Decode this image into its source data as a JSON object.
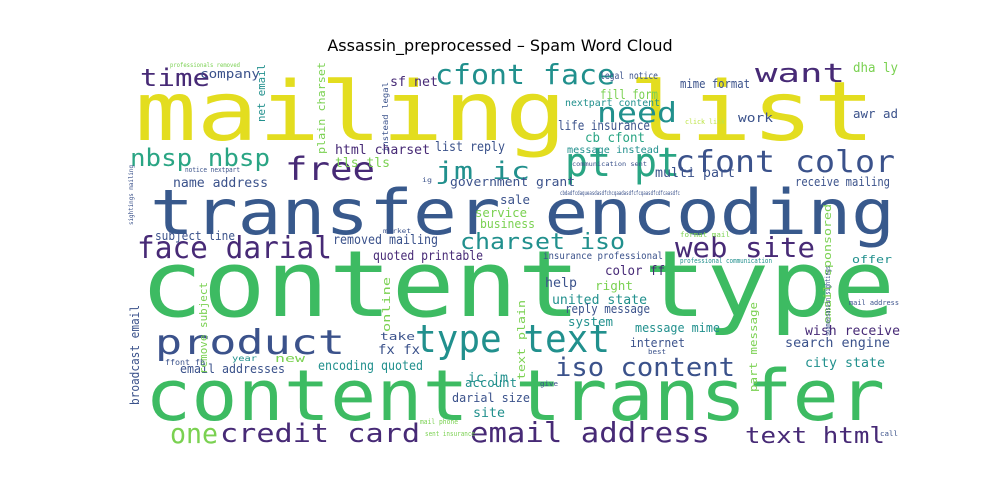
{
  "title": "Assassin_preprocessed – Spam Word Cloud",
  "palette": {
    "yellow": "#e3dd1f",
    "green": "#3dbb62",
    "navy": "#38598c",
    "purple": "#472a76",
    "teal": "#21908d",
    "lime": "#7ad151",
    "aqua": "#2aa584",
    "dark": "#3b528b",
    "pale": "#bde345"
  },
  "words": [
    {
      "text": "mailing list",
      "color": "yellow"
    },
    {
      "text": "transfer encoding",
      "color": "navy"
    },
    {
      "text": "content type",
      "color": "green"
    },
    {
      "text": "content transfer",
      "color": "green"
    },
    {
      "text": "type text",
      "color": "teal"
    },
    {
      "text": "product",
      "color": "dark"
    },
    {
      "text": "face darial",
      "color": "purple"
    },
    {
      "text": "free",
      "color": "purple"
    },
    {
      "text": "pt pt",
      "color": "aqua"
    },
    {
      "text": "cfont color",
      "color": "dark"
    },
    {
      "text": "cfont face",
      "color": "teal"
    },
    {
      "text": "web site",
      "color": "purple"
    },
    {
      "text": "credit card",
      "color": "purple"
    },
    {
      "text": "email address",
      "color": "purple"
    },
    {
      "text": "iso content",
      "color": "dark"
    },
    {
      "text": "charset iso",
      "color": "teal"
    },
    {
      "text": "need",
      "color": "teal"
    },
    {
      "text": "want",
      "color": "purple"
    },
    {
      "text": "time",
      "color": "purple"
    },
    {
      "text": "nbsp nbsp",
      "color": "aqua"
    },
    {
      "text": "text html",
      "color": "purple"
    },
    {
      "text": "jm ic",
      "color": "teal"
    },
    {
      "text": "one",
      "color": "lime"
    },
    {
      "text": "company",
      "color": "dark"
    },
    {
      "text": "net email",
      "color": "teal"
    },
    {
      "text": "sf net",
      "color": "purple"
    },
    {
      "text": "plain charset",
      "color": "lime"
    },
    {
      "text": "instead legal",
      "color": "dark"
    },
    {
      "text": "legal notice",
      "color": "dark"
    },
    {
      "text": "mime format",
      "color": "dark"
    },
    {
      "text": "fill form",
      "color": "lime"
    },
    {
      "text": "nextpart content",
      "color": "teal"
    },
    {
      "text": "life insurance",
      "color": "dark"
    },
    {
      "text": "cb cfont",
      "color": "aqua"
    },
    {
      "text": "message instead",
      "color": "teal"
    },
    {
      "text": "html charset",
      "color": "purple"
    },
    {
      "text": "list reply",
      "color": "dark"
    },
    {
      "text": "tls tls",
      "color": "lime"
    },
    {
      "text": "name address",
      "color": "dark"
    },
    {
      "text": "multi part",
      "color": "dark"
    },
    {
      "text": "government grant",
      "color": "dark"
    },
    {
      "text": "receive mailing",
      "color": "dark"
    },
    {
      "text": "dha ly",
      "color": "lime"
    },
    {
      "text": "awr ad",
      "color": "dark"
    },
    {
      "text": "work",
      "color": "dark"
    },
    {
      "text": "click link",
      "color": "pale"
    },
    {
      "text": "sale",
      "color": "dark"
    },
    {
      "text": "service",
      "color": "lime"
    },
    {
      "text": "business",
      "color": "lime"
    },
    {
      "text": "subject line",
      "color": "dark"
    },
    {
      "text": "removed mailing",
      "color": "dark"
    },
    {
      "text": "quoted printable",
      "color": "purple"
    },
    {
      "text": "insurance professional",
      "color": "dark"
    },
    {
      "text": "color ff",
      "color": "purple"
    },
    {
      "text": "help",
      "color": "dark"
    },
    {
      "text": "right",
      "color": "lime"
    },
    {
      "text": "united state",
      "color": "teal"
    },
    {
      "text": "reply message",
      "color": "dark"
    },
    {
      "text": "system",
      "color": "teal"
    },
    {
      "text": "message mime",
      "color": "teal"
    },
    {
      "text": "internet",
      "color": "dark"
    },
    {
      "text": "fx fx",
      "color": "dark"
    },
    {
      "text": "encoding quoted",
      "color": "teal"
    },
    {
      "text": "email addresses",
      "color": "dark"
    },
    {
      "text": "ic jm",
      "color": "teal"
    },
    {
      "text": "account",
      "color": "teal"
    },
    {
      "text": "darial size",
      "color": "dark"
    },
    {
      "text": "site",
      "color": "teal"
    },
    {
      "text": "broadcast email",
      "color": "dark"
    },
    {
      "text": "remove subject",
      "color": "lime"
    },
    {
      "text": "text plain",
      "color": "lime"
    },
    {
      "text": "online",
      "color": "lime"
    },
    {
      "text": "take",
      "color": "dark"
    },
    {
      "text": "new",
      "color": "lime"
    },
    {
      "text": "year",
      "color": "teal"
    },
    {
      "text": "ffont fb",
      "color": "dark"
    },
    {
      "text": "wish receive",
      "color": "purple"
    },
    {
      "text": "search engine",
      "color": "dark"
    },
    {
      "text": "city state",
      "color": "teal"
    },
    {
      "text": "offer",
      "color": "teal"
    },
    {
      "text": "email sponsored",
      "color": "lime"
    },
    {
      "text": "part message",
      "color": "lime"
    },
    {
      "text": "professional communication",
      "color": "teal"
    },
    {
      "text": "format mail",
      "color": "lime"
    },
    {
      "text": "mail address",
      "color": "dark"
    },
    {
      "text": "spamassassin sightings",
      "color": "dark"
    },
    {
      "text": "sightings mailing",
      "color": "dark"
    },
    {
      "text": "notice nextpart",
      "color": "dark"
    },
    {
      "text": "professionals removed",
      "color": "lime"
    },
    {
      "text": "best",
      "color": "dark"
    },
    {
      "text": "give",
      "color": "dark"
    },
    {
      "text": "mail phone",
      "color": "lime"
    },
    {
      "text": "sent insurance",
      "color": "lime"
    },
    {
      "text": "call",
      "color": "dark"
    },
    {
      "text": "market",
      "color": "dark"
    },
    {
      "text": "communication sent",
      "color": "dark"
    },
    {
      "text": "ig",
      "color": "dark"
    },
    {
      "text": "cbdadfcdaqueasdasdfchcqaadasdfcfcqaasdfcdfcaasdfc",
      "color": "dark"
    }
  ]
}
